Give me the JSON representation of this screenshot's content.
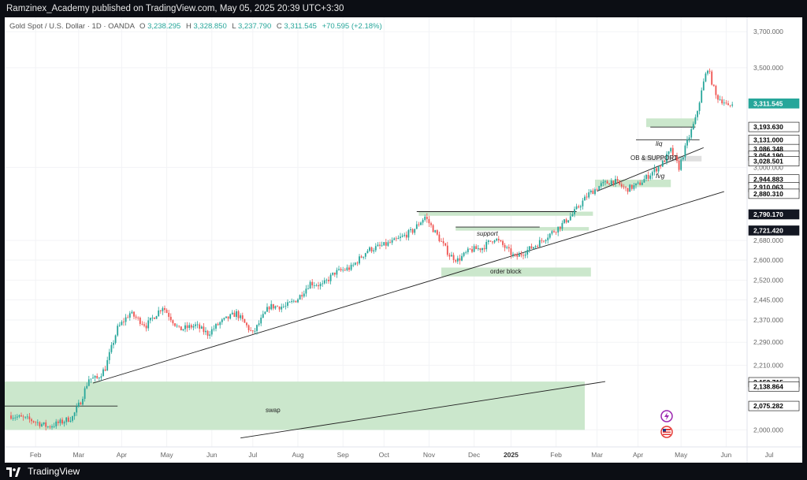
{
  "header": {
    "publisher_line": "Ramzinex_Academy published on TradingView.com, May 05, 2025 20:39 UTC+3:30"
  },
  "symbol_bar": {
    "name": "Gold Spot / U.S. Dollar · 1D · OANDA",
    "o_label": "O",
    "o_value": "3,238.295",
    "h_label": "H",
    "h_value": "3,328.850",
    "l_label": "L",
    "l_value": "3,237.790",
    "c_label": "C",
    "c_value": "3,311.545",
    "change": "+70.595 (+2.18%)"
  },
  "footer": {
    "brand": "TradingView"
  },
  "colors": {
    "up": "#26a69a",
    "down": "#ef5350",
    "zone": "#c8e6c9",
    "fvg": "#dcdcdc",
    "price_tag": "#26a69a",
    "dark_tag": "#131722"
  },
  "chart_data": {
    "type": "candlestick",
    "ylim": [
      1960,
      3760
    ],
    "y_scale": "log",
    "y_ticks": [
      {
        "v": 3700,
        "label": "3,700.000"
      },
      {
        "v": 3500,
        "label": "3,500.000"
      },
      {
        "v": 3000,
        "label": "3,000.000"
      },
      {
        "v": 2680,
        "label": "2,680.000"
      },
      {
        "v": 2600,
        "label": "2,600.000"
      },
      {
        "v": 2520,
        "label": "2,520.000"
      },
      {
        "v": 2445,
        "label": "2,445.000"
      },
      {
        "v": 2370,
        "label": "2,370.000"
      },
      {
        "v": 2290,
        "label": "2,290.000"
      },
      {
        "v": 2210,
        "label": "2,210.000"
      },
      {
        "v": 2000,
        "label": "2,000.000"
      }
    ],
    "x_ticks": [
      "Feb",
      "Mar",
      "Apr",
      "May",
      "Jun",
      "Jul",
      "Aug",
      "Sep",
      "Oct",
      "Nov",
      "Dec",
      "2025",
      "Feb",
      "Mar",
      "Apr",
      "May",
      "Jun",
      "Jul"
    ],
    "price_tags": [
      {
        "v": 3311.545,
        "label": "3,311.545",
        "kind": "current"
      },
      {
        "v": 3193.63,
        "label": "3,193.630",
        "kind": "level"
      },
      {
        "v": 3131.0,
        "label": "3,131.000",
        "kind": "level"
      },
      {
        "v": 3086.348,
        "label": "3,086.348",
        "kind": "level"
      },
      {
        "v": 3054.19,
        "label": "3,054.190",
        "kind": "level"
      },
      {
        "v": 3028.5,
        "label": "3,028.501",
        "kind": "level"
      },
      {
        "v": 2944.883,
        "label": "2,944.883",
        "kind": "level"
      },
      {
        "v": 2910.0,
        "label": "2,910.063",
        "kind": "level"
      },
      {
        "v": 2880.31,
        "label": "2,880.310",
        "kind": "level"
      },
      {
        "v": 2790.17,
        "label": "2,790.170",
        "kind": "dark"
      },
      {
        "v": 2721.42,
        "label": "2,721.420",
        "kind": "dark"
      },
      {
        "v": 2152.7,
        "label": "2,152.715",
        "kind": "level"
      },
      {
        "v": 2138.864,
        "label": "2,138.864",
        "kind": "level"
      },
      {
        "v": 2075.282,
        "label": "2,075.282",
        "kind": "level"
      }
    ],
    "annotations": {
      "liq": "liq",
      "ob_support": "OB & SUPPORT",
      "fvg": "fvg",
      "support": "support",
      "order_block": "order block",
      "swap": "swap"
    },
    "zones": [
      {
        "name": "swap",
        "from_bar": -8,
        "to_bar": 280,
        "y_top": 2155,
        "y_bottom": 2000,
        "color": "zone"
      },
      {
        "name": "order-block",
        "from_bar": 210,
        "to_bar": 283,
        "y_top": 2570,
        "y_bottom": 2535,
        "color": "zone"
      },
      {
        "name": "support-zone",
        "from_bar": 217,
        "to_bar": 282,
        "y_top": 2736,
        "y_bottom": 2721,
        "color": "zone"
      },
      {
        "name": "upper-support-zone",
        "from_bar": 199,
        "to_bar": 284,
        "y_top": 2802,
        "y_bottom": 2784,
        "color": "zone"
      },
      {
        "name": "lower-ob-zone",
        "from_bar": 285,
        "to_bar": 322,
        "y_top": 2944,
        "y_bottom": 2910,
        "color": "zone"
      },
      {
        "name": "fvg-zone",
        "from_bar": 308,
        "to_bar": 337,
        "y_top": 3054,
        "y_bottom": 3028,
        "color": "fvg"
      },
      {
        "name": "liq-zone",
        "from_bar": 310,
        "to_bar": 334,
        "y_top": 3236,
        "y_bottom": 3193,
        "color": "zone"
      }
    ],
    "lines": [
      {
        "name": "long-trendline",
        "x1": 40,
        "y1": 2150,
        "x2": 348,
        "y2": 2890
      },
      {
        "name": "lower-trendline",
        "x1": 112,
        "y1": 1975,
        "x2": 290,
        "y2": 2155
      },
      {
        "name": "recent-trendline",
        "x1": 286,
        "y1": 2892,
        "x2": 338,
        "y2": 3093
      },
      {
        "name": "resistance-line",
        "x1": 198,
        "y1": 2802,
        "x2": 276,
        "y2": 2802
      },
      {
        "name": "support-line",
        "x1": 217,
        "y1": 2736,
        "x2": 258,
        "y2": 2736
      },
      {
        "name": "swap-line",
        "x1": -8,
        "y1": 2075,
        "x2": 52,
        "y2": 2075
      },
      {
        "name": "liq-line",
        "x1": 312,
        "y1": 3193,
        "x2": 334,
        "y2": 3193
      },
      {
        "name": "ob-line",
        "x1": 305,
        "y1": 3131,
        "x2": 336,
        "y2": 3131
      }
    ]
  }
}
